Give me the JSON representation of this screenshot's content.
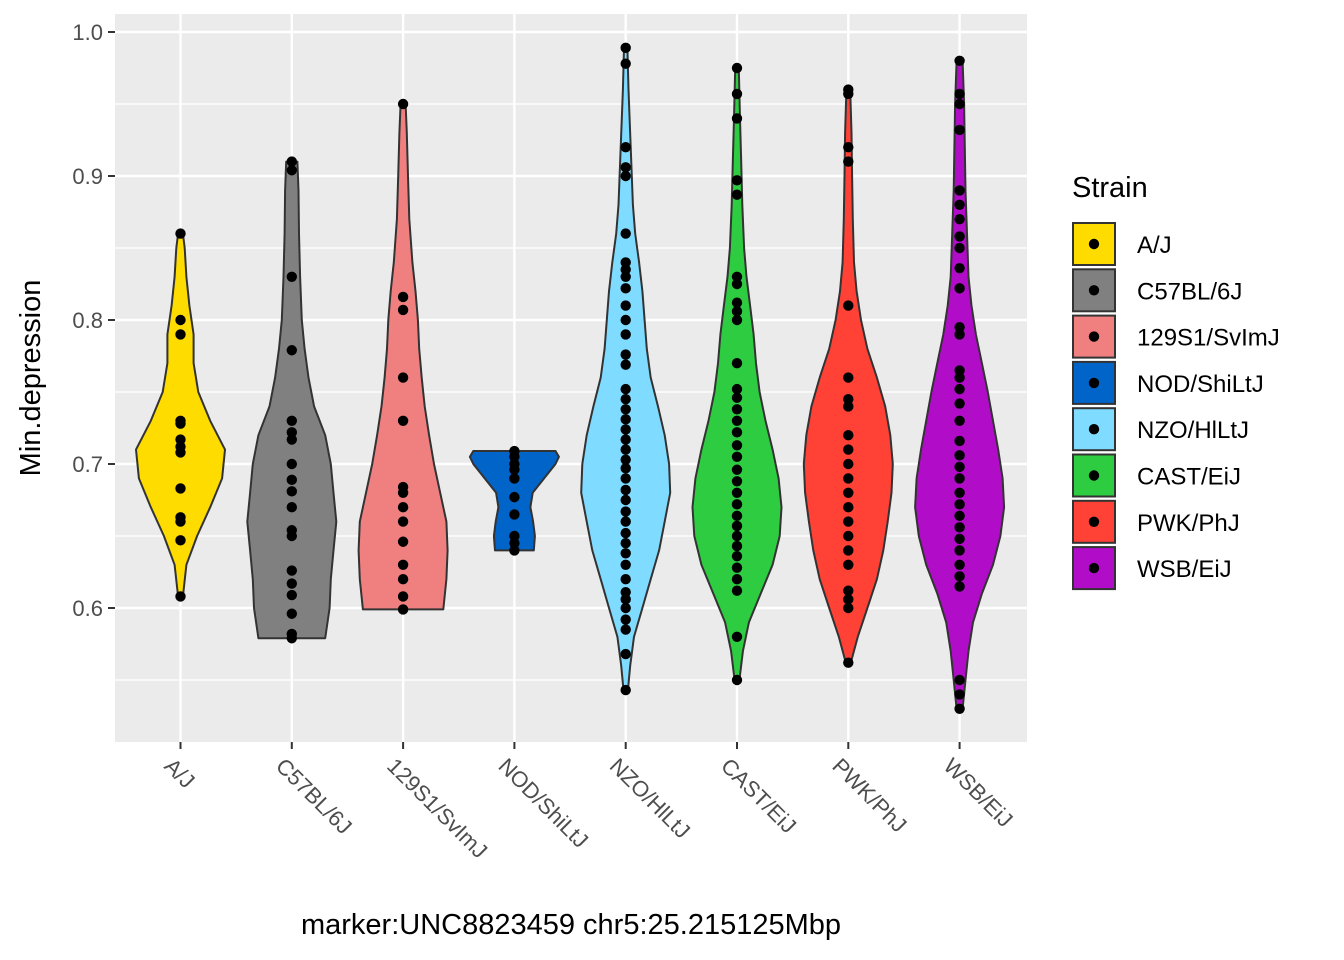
{
  "chart_data": {
    "type": "violin",
    "title": "",
    "xlabel": "marker:UNC8823459 chr5:25.215125Mbp",
    "ylabel": "Min.depression",
    "ylim": [
      0.505,
      1.012
    ],
    "yticks": [
      0.6,
      0.7,
      0.8,
      0.9,
      1.0
    ],
    "yminor": [
      0.55,
      0.65,
      0.75,
      0.85,
      0.95
    ],
    "ytick_labels": [
      "0.6",
      "0.7",
      "0.8",
      "0.9",
      "1.0"
    ],
    "grid": true,
    "legend": {
      "title": "Strain",
      "position": "right"
    },
    "categories": [
      "A/J",
      "C57BL/6J",
      "129S1/SvImJ",
      "NOD/ShiLtJ",
      "NZO/HlLtJ",
      "CAST/EiJ",
      "PWK/PhJ",
      "WSB/EiJ"
    ],
    "series": [
      {
        "name": "A/J",
        "color": "#FFDC00",
        "profile": [
          [
            0.608,
            0.004
          ],
          [
            0.63,
            0.01
          ],
          [
            0.65,
            0.028
          ],
          [
            0.67,
            0.05
          ],
          [
            0.69,
            0.07
          ],
          [
            0.71,
            0.075
          ],
          [
            0.73,
            0.05
          ],
          [
            0.75,
            0.03
          ],
          [
            0.77,
            0.022
          ],
          [
            0.79,
            0.022
          ],
          [
            0.81,
            0.015
          ],
          [
            0.83,
            0.01
          ],
          [
            0.85,
            0.007
          ],
          [
            0.86,
            0.004
          ]
        ],
        "points": [
          0.608,
          0.647,
          0.66,
          0.663,
          0.683,
          0.708,
          0.712,
          0.717,
          0.728,
          0.73,
          0.79,
          0.8,
          0.86
        ]
      },
      {
        "name": "C57BL/6J",
        "color": "#808080",
        "profile": [
          [
            0.579,
            0.06
          ],
          [
            0.6,
            0.068
          ],
          [
            0.62,
            0.07
          ],
          [
            0.64,
            0.075
          ],
          [
            0.66,
            0.08
          ],
          [
            0.68,
            0.075
          ],
          [
            0.7,
            0.07
          ],
          [
            0.72,
            0.06
          ],
          [
            0.74,
            0.04
          ],
          [
            0.76,
            0.03
          ],
          [
            0.78,
            0.023
          ],
          [
            0.8,
            0.018
          ],
          [
            0.83,
            0.015
          ],
          [
            0.86,
            0.013
          ],
          [
            0.89,
            0.012
          ],
          [
            0.91,
            0.01
          ]
        ],
        "points": [
          0.579,
          0.582,
          0.596,
          0.609,
          0.617,
          0.626,
          0.65,
          0.654,
          0.67,
          0.681,
          0.689,
          0.7,
          0.717,
          0.722,
          0.73,
          0.779,
          0.83,
          0.904,
          0.91
        ]
      },
      {
        "name": "129S1/SvImJ",
        "color": "#F08080",
        "profile": [
          [
            0.599,
            0.065
          ],
          [
            0.62,
            0.07
          ],
          [
            0.64,
            0.072
          ],
          [
            0.66,
            0.07
          ],
          [
            0.68,
            0.06
          ],
          [
            0.7,
            0.05
          ],
          [
            0.72,
            0.042
          ],
          [
            0.74,
            0.035
          ],
          [
            0.76,
            0.03
          ],
          [
            0.78,
            0.026
          ],
          [
            0.8,
            0.024
          ],
          [
            0.82,
            0.02
          ],
          [
            0.84,
            0.015
          ],
          [
            0.87,
            0.01
          ],
          [
            0.9,
            0.008
          ],
          [
            0.93,
            0.006
          ],
          [
            0.95,
            0.004
          ]
        ],
        "points": [
          0.599,
          0.608,
          0.62,
          0.63,
          0.646,
          0.66,
          0.67,
          0.68,
          0.684,
          0.73,
          0.76,
          0.807,
          0.816,
          0.95
        ]
      },
      {
        "name": "NOD/ShiLtJ",
        "color": "#0064C9",
        "profile": [
          [
            0.64,
            0.085
          ],
          [
            0.65,
            0.09
          ],
          [
            0.66,
            0.082
          ],
          [
            0.67,
            0.07
          ],
          [
            0.68,
            0.08
          ],
          [
            0.69,
            0.13
          ],
          [
            0.7,
            0.18
          ],
          [
            0.705,
            0.195
          ],
          [
            0.709,
            0.18
          ]
        ],
        "points": [
          0.64,
          0.645,
          0.65,
          0.665,
          0.677,
          0.69,
          0.696,
          0.7,
          0.705,
          0.709
        ]
      },
      {
        "name": "NZO/HlLtJ",
        "color": "#7FDBFF",
        "profile": [
          [
            0.543,
            0.004
          ],
          [
            0.56,
            0.008
          ],
          [
            0.58,
            0.015
          ],
          [
            0.6,
            0.03
          ],
          [
            0.62,
            0.045
          ],
          [
            0.64,
            0.06
          ],
          [
            0.66,
            0.07
          ],
          [
            0.68,
            0.08
          ],
          [
            0.7,
            0.078
          ],
          [
            0.72,
            0.07
          ],
          [
            0.74,
            0.058
          ],
          [
            0.76,
            0.045
          ],
          [
            0.78,
            0.038
          ],
          [
            0.8,
            0.034
          ],
          [
            0.82,
            0.03
          ],
          [
            0.84,
            0.024
          ],
          [
            0.86,
            0.017
          ],
          [
            0.88,
            0.013
          ],
          [
            0.9,
            0.011
          ],
          [
            0.92,
            0.009
          ],
          [
            0.94,
            0.007
          ],
          [
            0.96,
            0.005
          ],
          [
            0.989,
            0.003
          ]
        ],
        "points": [
          0.543,
          0.568,
          0.585,
          0.592,
          0.6,
          0.606,
          0.611,
          0.62,
          0.63,
          0.638,
          0.645,
          0.652,
          0.66,
          0.667,
          0.675,
          0.682,
          0.69,
          0.697,
          0.703,
          0.71,
          0.717,
          0.724,
          0.731,
          0.738,
          0.745,
          0.752,
          0.769,
          0.776,
          0.79,
          0.8,
          0.81,
          0.822,
          0.83,
          0.835,
          0.84,
          0.86,
          0.9,
          0.906,
          0.92,
          0.978,
          0.989
        ]
      },
      {
        "name": "CAST/EiJ",
        "color": "#2ECC40",
        "profile": [
          [
            0.55,
            0.004
          ],
          [
            0.57,
            0.01
          ],
          [
            0.59,
            0.02
          ],
          [
            0.61,
            0.04
          ],
          [
            0.63,
            0.06
          ],
          [
            0.65,
            0.072
          ],
          [
            0.67,
            0.075
          ],
          [
            0.69,
            0.07
          ],
          [
            0.71,
            0.06
          ],
          [
            0.73,
            0.048
          ],
          [
            0.75,
            0.038
          ],
          [
            0.77,
            0.032
          ],
          [
            0.79,
            0.028
          ],
          [
            0.81,
            0.022
          ],
          [
            0.83,
            0.016
          ],
          [
            0.85,
            0.012
          ],
          [
            0.88,
            0.009
          ],
          [
            0.91,
            0.007
          ],
          [
            0.94,
            0.005
          ],
          [
            0.975,
            0.003
          ]
        ],
        "points": [
          0.55,
          0.58,
          0.612,
          0.62,
          0.628,
          0.636,
          0.643,
          0.65,
          0.657,
          0.664,
          0.672,
          0.68,
          0.688,
          0.696,
          0.705,
          0.713,
          0.722,
          0.73,
          0.738,
          0.746,
          0.752,
          0.77,
          0.8,
          0.806,
          0.812,
          0.825,
          0.83,
          0.887,
          0.897,
          0.94,
          0.957,
          0.975
        ]
      },
      {
        "name": "PWK/PhJ",
        "color": "#FF4136",
        "profile": [
          [
            0.562,
            0.004
          ],
          [
            0.58,
            0.015
          ],
          [
            0.6,
            0.03
          ],
          [
            0.62,
            0.045
          ],
          [
            0.64,
            0.055
          ],
          [
            0.66,
            0.062
          ],
          [
            0.68,
            0.068
          ],
          [
            0.7,
            0.07
          ],
          [
            0.72,
            0.066
          ],
          [
            0.74,
            0.058
          ],
          [
            0.76,
            0.045
          ],
          [
            0.78,
            0.03
          ],
          [
            0.8,
            0.02
          ],
          [
            0.82,
            0.013
          ],
          [
            0.84,
            0.009
          ],
          [
            0.87,
            0.007
          ],
          [
            0.9,
            0.006
          ],
          [
            0.93,
            0.005
          ],
          [
            0.96,
            0.003
          ]
        ],
        "points": [
          0.562,
          0.6,
          0.606,
          0.612,
          0.63,
          0.64,
          0.65,
          0.66,
          0.67,
          0.68,
          0.69,
          0.7,
          0.71,
          0.72,
          0.74,
          0.745,
          0.76,
          0.81,
          0.91,
          0.92,
          0.957,
          0.96
        ]
      },
      {
        "name": "WSB/EiJ",
        "color": "#B10DC9",
        "profile": [
          [
            0.53,
            0.004
          ],
          [
            0.55,
            0.008
          ],
          [
            0.57,
            0.012
          ],
          [
            0.59,
            0.018
          ],
          [
            0.61,
            0.03
          ],
          [
            0.63,
            0.045
          ],
          [
            0.65,
            0.055
          ],
          [
            0.67,
            0.06
          ],
          [
            0.69,
            0.058
          ],
          [
            0.71,
            0.052
          ],
          [
            0.73,
            0.045
          ],
          [
            0.75,
            0.038
          ],
          [
            0.77,
            0.03
          ],
          [
            0.79,
            0.022
          ],
          [
            0.81,
            0.016
          ],
          [
            0.83,
            0.012
          ],
          [
            0.86,
            0.01
          ],
          [
            0.89,
            0.008
          ],
          [
            0.92,
            0.007
          ],
          [
            0.95,
            0.006
          ],
          [
            0.98,
            0.004
          ]
        ],
        "points": [
          0.53,
          0.54,
          0.55,
          0.615,
          0.622,
          0.63,
          0.64,
          0.648,
          0.656,
          0.664,
          0.672,
          0.68,
          0.69,
          0.698,
          0.706,
          0.716,
          0.73,
          0.742,
          0.752,
          0.76,
          0.765,
          0.79,
          0.795,
          0.822,
          0.836,
          0.85,
          0.858,
          0.87,
          0.88,
          0.89,
          0.932,
          0.95,
          0.957,
          0.98
        ]
      }
    ]
  }
}
